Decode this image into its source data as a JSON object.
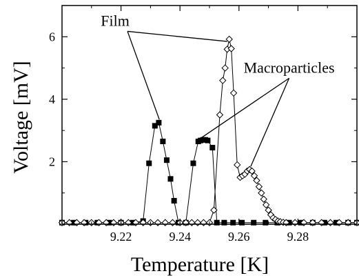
{
  "chart_data": {
    "type": "scatter",
    "title": "",
    "xlabel": "Temperature [K]",
    "ylabel": "Voltage [mV]",
    "xlim": [
      9.2,
      9.3
    ],
    "ylim": [
      0,
      7
    ],
    "x_ticks": [
      9.22,
      9.24,
      9.26,
      9.28
    ],
    "x_tick_labels": [
      "9.22",
      "9.24",
      "9.26",
      "9.28"
    ],
    "y_ticks": [
      2,
      4,
      6
    ],
    "y_tick_labels": [
      "2",
      "4",
      "6"
    ],
    "grid": false,
    "legend": "none",
    "series": [
      {
        "marker": "filled-square",
        "color": "#000000",
        "points": [
          [
            9.2,
            0.05
          ],
          [
            9.204,
            0.05
          ],
          [
            9.208,
            0.05
          ],
          [
            9.212,
            0.05
          ],
          [
            9.216,
            0.05
          ],
          [
            9.22,
            0.05
          ],
          [
            9.224,
            0.05
          ],
          [
            9.2275,
            0.1
          ],
          [
            9.2295,
            1.95
          ],
          [
            9.2315,
            3.15
          ],
          [
            9.2328,
            3.25
          ],
          [
            9.2342,
            2.65
          ],
          [
            9.2355,
            2.05
          ],
          [
            9.2368,
            1.45
          ],
          [
            9.238,
            0.75
          ],
          [
            9.2395,
            0.05
          ],
          [
            9.242,
            0.05
          ],
          [
            9.2445,
            1.95
          ],
          [
            9.2462,
            2.65
          ],
          [
            9.247,
            2.68
          ],
          [
            9.2478,
            2.7
          ],
          [
            9.2486,
            2.7
          ],
          [
            9.2494,
            2.68
          ],
          [
            9.251,
            2.45
          ],
          [
            9.2525,
            0.05
          ],
          [
            9.255,
            0.05
          ],
          [
            9.258,
            0.05
          ],
          [
            9.261,
            0.05
          ],
          [
            9.265,
            0.05
          ],
          [
            9.269,
            0.05
          ],
          [
            9.273,
            0.05
          ],
          [
            9.277,
            0.05
          ],
          [
            9.281,
            0.05
          ],
          [
            9.285,
            0.05
          ],
          [
            9.289,
            0.05
          ],
          [
            9.293,
            0.05
          ],
          [
            9.297,
            0.05
          ],
          [
            9.3,
            0.05
          ]
        ]
      },
      {
        "marker": "open-diamond",
        "color": "#000000",
        "points": [
          [
            9.2,
            0.05
          ],
          [
            9.2025,
            0.05
          ],
          [
            9.205,
            0.05
          ],
          [
            9.2075,
            0.05
          ],
          [
            9.21,
            0.05
          ],
          [
            9.2125,
            0.05
          ],
          [
            9.215,
            0.05
          ],
          [
            9.2175,
            0.05
          ],
          [
            9.22,
            0.05
          ],
          [
            9.2225,
            0.05
          ],
          [
            9.225,
            0.05
          ],
          [
            9.2275,
            0.05
          ],
          [
            9.23,
            0.05
          ],
          [
            9.2325,
            0.05
          ],
          [
            9.235,
            0.05
          ],
          [
            9.2375,
            0.05
          ],
          [
            9.24,
            0.05
          ],
          [
            9.242,
            0.05
          ],
          [
            9.244,
            0.05
          ],
          [
            9.246,
            0.05
          ],
          [
            9.248,
            0.05
          ],
          [
            9.25,
            0.05
          ],
          [
            9.2515,
            0.45
          ],
          [
            9.2535,
            3.5
          ],
          [
            9.2545,
            4.6
          ],
          [
            9.2553,
            5.0
          ],
          [
            9.256,
            5.6
          ],
          [
            9.2567,
            5.92
          ],
          [
            9.2574,
            5.62
          ],
          [
            9.2582,
            4.2
          ],
          [
            9.2594,
            1.9
          ],
          [
            9.2604,
            1.5
          ],
          [
            9.2612,
            1.55
          ],
          [
            9.262,
            1.6
          ],
          [
            9.2628,
            1.7
          ],
          [
            9.2636,
            1.75
          ],
          [
            9.2644,
            1.7
          ],
          [
            9.2652,
            1.55
          ],
          [
            9.266,
            1.4
          ],
          [
            9.2668,
            1.2
          ],
          [
            9.2676,
            1.0
          ],
          [
            9.2684,
            0.8
          ],
          [
            9.2692,
            0.62
          ],
          [
            9.27,
            0.45
          ],
          [
            9.2708,
            0.3
          ],
          [
            9.2716,
            0.2
          ],
          [
            9.2724,
            0.15
          ],
          [
            9.2732,
            0.1
          ],
          [
            9.274,
            0.08
          ],
          [
            9.275,
            0.06
          ],
          [
            9.276,
            0.05
          ],
          [
            9.279,
            0.05
          ],
          [
            9.282,
            0.05
          ],
          [
            9.285,
            0.05
          ],
          [
            9.288,
            0.05
          ],
          [
            9.291,
            0.05
          ],
          [
            9.294,
            0.05
          ],
          [
            9.297,
            0.05
          ],
          [
            9.3,
            0.05
          ]
        ]
      }
    ],
    "annotations": [
      {
        "text": "Film",
        "label_at": [
          9.218,
          6.35
        ],
        "pointer_targets": [
          [
            9.233,
            3.35
          ],
          [
            9.256,
            5.85
          ]
        ]
      },
      {
        "text": "Macroparticles",
        "label_at": [
          9.277,
          4.85
        ],
        "pointer_targets": [
          [
            9.247,
            2.75
          ],
          [
            9.264,
            1.85
          ]
        ]
      }
    ]
  }
}
